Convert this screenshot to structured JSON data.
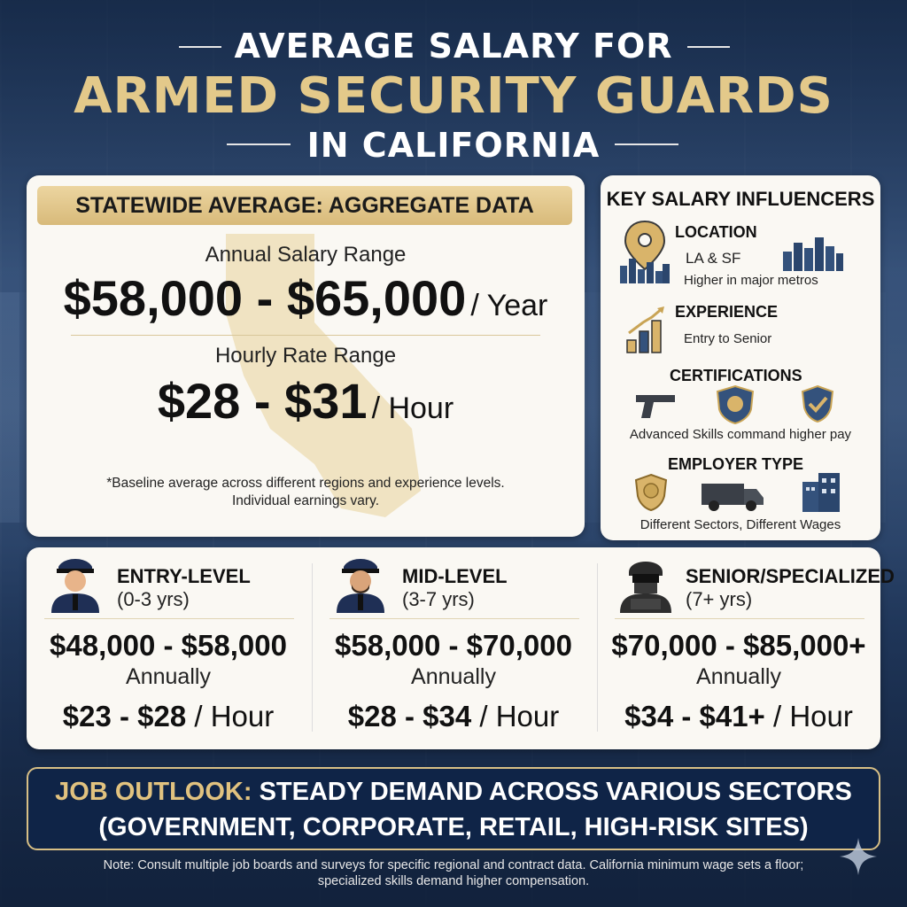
{
  "header": {
    "line1": "AVERAGE SALARY FOR",
    "line2": "ARMED SECURITY GUARDS",
    "line3": "IN CALIFORNIA"
  },
  "statewide": {
    "banner": "STATEWIDE AVERAGE: AGGREGATE DATA",
    "annual_label": "Annual Salary Range",
    "annual_value": "$58,000 - $65,000",
    "annual_unit": "/ Year",
    "hourly_label": "Hourly Rate Range",
    "hourly_value": "$28 - $31",
    "hourly_unit": "/ Hour",
    "footnote_1": "*Baseline average across different regions and experience levels.",
    "footnote_2": "Individual earnings vary."
  },
  "influencers": {
    "title": "KEY SALARY INFLUENCERS",
    "location_head": "LOCATION",
    "location_text_1": "LA & SF",
    "location_text_2": "Higher in major metros",
    "experience_head": "EXPERIENCE",
    "experience_text": "Entry to Senior",
    "certifications_head": "CERTIFICATIONS",
    "certifications_text": "Advanced Skills command higher pay",
    "employer_head": "EMPLOYER TYPE",
    "employer_text": "Different Sectors, Different Wages"
  },
  "tiers": [
    {
      "name": "ENTRY-LEVEL",
      "years": "(0-3 yrs)",
      "annual": "$48,000 - $58,000",
      "annual_label": "Annually",
      "hourly": "$23 - $28",
      "hourly_unit": "/ Hour"
    },
    {
      "name": "MID-LEVEL",
      "years": "(3-7 yrs)",
      "annual": "$58,000 - $70,000",
      "annual_label": "Annually",
      "hourly": "$28 - $34",
      "hourly_unit": "/ Hour"
    },
    {
      "name": "SENIOR/SPECIALIZED",
      "years": "(7+ yrs)",
      "annual": "$70,000 - $85,000+",
      "annual_label": "Annually",
      "hourly": "$34 - $41+",
      "hourly_unit": "/ Hour"
    }
  ],
  "outlook": {
    "prefix": "JOB OUTLOOK:",
    "line1_rest": "STEADY DEMAND ACROSS VARIOUS SECTORS",
    "line2": "(GOVERNMENT, CORPORATE, RETAIL, HIGH-RISK SITES)"
  },
  "note": {
    "line1": "Note: Consult multiple job boards and surveys for specific regional and contract data. California minimum wage sets a floor;",
    "line2": "specialized skills demand higher compensation."
  },
  "colors": {
    "navy": "#1d3457",
    "gold": "#e3c98a",
    "card": "#faf8f3"
  },
  "icons": [
    "location-pin-icon",
    "city-skyline-icon",
    "growth-chart-icon",
    "pistol-icon",
    "shield-badge-icon",
    "checkmark-shield-icon",
    "police-badge-icon",
    "armored-truck-icon",
    "office-building-icon",
    "entry-officer-icon",
    "mid-officer-icon",
    "tactical-officer-icon",
    "sparkle-icon"
  ]
}
